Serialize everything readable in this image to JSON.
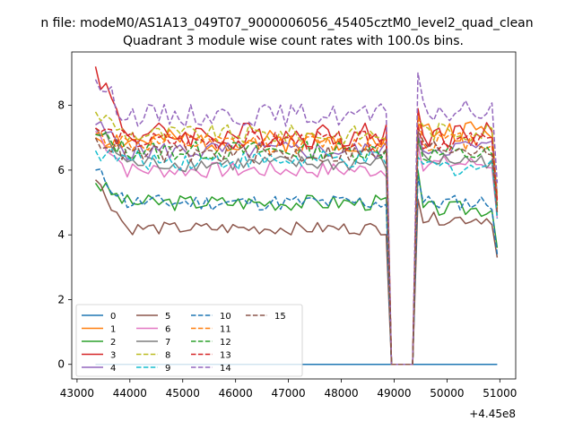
{
  "figure": {
    "suptitle": "n file: modeM0/AS1A13_049T07_9000006056_45405cztM0_level2_quad_clean",
    "title": "Quadrant 3 module wise count rates with 100.0s bins."
  },
  "chart_data": {
    "type": "line",
    "title": "Quadrant 3 module wise count rates with 100.0s bins.",
    "xlabel": "",
    "ylabel": "",
    "x_offset_label": "+4.45e8",
    "xlim": [
      42900,
      51300
    ],
    "ylim": [
      -0.45,
      9.65
    ],
    "xticks": [
      43000,
      44000,
      45000,
      46000,
      47000,
      48000,
      49000,
      50000,
      51000
    ],
    "xtick_labels": [
      "43000",
      "44000",
      "45000",
      "46000",
      "47000",
      "48000",
      "49000",
      "50000",
      "51000"
    ],
    "yticks": [
      0,
      2,
      4,
      6,
      8
    ],
    "ytick_labels": [
      "0",
      "2",
      "4",
      "6",
      "8"
    ],
    "grid": false,
    "legend_position": "lower-left",
    "legend_columns": 4,
    "gap_x_range": [
      48900,
      49400
    ],
    "x_range": [
      43350,
      50950
    ],
    "x_step": 100,
    "series": [
      {
        "name": "0",
        "color": "#1f77b4",
        "style": "solid",
        "base": [
          0,
          0,
          0,
          0,
          0,
          0,
          0,
          0,
          0,
          0,
          0,
          0,
          0,
          0,
          0,
          0,
          0,
          0,
          0,
          0,
          0,
          0,
          0,
          0,
          0,
          0,
          0,
          0,
          0,
          0,
          0,
          0,
          0,
          0,
          0,
          0,
          0,
          0,
          0,
          0,
          0,
          0,
          0,
          0,
          0,
          0,
          0,
          0,
          0,
          0,
          0,
          0,
          0,
          0,
          0,
          0,
          0,
          0,
          0,
          0,
          0,
          0,
          0,
          0,
          0,
          0,
          0,
          0,
          0,
          0,
          0,
          0,
          0,
          0,
          0,
          0
        ],
        "first": 0,
        "last": 0,
        "after_first": 0,
        "seed": 1
      },
      {
        "name": "1",
        "color": "#ff7f0e",
        "style": "solid",
        "base": 6.9,
        "first": 7.0,
        "after_first": 7.4,
        "after_level": 7.2,
        "last": 4.8,
        "amp": 0.35,
        "seed": 2
      },
      {
        "name": "2",
        "color": "#2ca02c",
        "style": "solid",
        "base": 5.0,
        "first": 5.6,
        "after_first": 6.0,
        "after_level": 4.8,
        "last": 3.6,
        "amp": 0.25,
        "seed": 3
      },
      {
        "name": "3",
        "color": "#d62728",
        "style": "solid",
        "base": 7.1,
        "first": 9.2,
        "after_first": 7.9,
        "after_level": 7.1,
        "last": 5.1,
        "amp": 0.4,
        "seed": 4
      },
      {
        "name": "4",
        "color": "#9467bd",
        "style": "solid",
        "base": 6.6,
        "first": 7.4,
        "after_first": 7.1,
        "after_level": 6.7,
        "last": 5.3,
        "amp": 0.3,
        "seed": 5
      },
      {
        "name": "5",
        "color": "#8c564b",
        "style": "solid",
        "base": 4.2,
        "first": 5.7,
        "after_first": 5.1,
        "after_level": 4.5,
        "last": 3.3,
        "amp": 0.2,
        "seed": 6
      },
      {
        "name": "6",
        "color": "#e377c2",
        "style": "solid",
        "base": 6.0,
        "first": 7.2,
        "after_first": 6.8,
        "after_level": 6.2,
        "last": 4.5,
        "amp": 0.25,
        "seed": 7
      },
      {
        "name": "7",
        "color": "#7f7f7f",
        "style": "solid",
        "base": 6.2,
        "first": 7.3,
        "after_first": 6.9,
        "after_level": 6.3,
        "last": 4.6,
        "amp": 0.25,
        "seed": 8
      },
      {
        "name": "8",
        "color": "#bcbd22",
        "style": "dashed",
        "base": 7.1,
        "first": 7.8,
        "after_first": 7.6,
        "after_level": 7.2,
        "last": 5.2,
        "amp": 0.3,
        "seed": 9
      },
      {
        "name": "9",
        "color": "#17becf",
        "style": "dashed",
        "base": 6.3,
        "first": 6.6,
        "after_first": 6.4,
        "after_level": 6.1,
        "last": 4.5,
        "amp": 0.3,
        "seed": 10
      },
      {
        "name": "10",
        "color": "#1f77b4",
        "style": "dashed",
        "base": 5.0,
        "first": 6.0,
        "after_first": 5.8,
        "after_level": 5.0,
        "last": 3.4,
        "amp": 0.25,
        "seed": 11
      },
      {
        "name": "11",
        "color": "#ff7f0e",
        "style": "dashed",
        "base": 6.8,
        "first": 7.1,
        "after_first": 7.7,
        "after_level": 6.9,
        "last": 5.0,
        "amp": 0.3,
        "seed": 12
      },
      {
        "name": "12",
        "color": "#2ca02c",
        "style": "dashed",
        "base": 6.6,
        "first": 7.1,
        "after_first": 7.0,
        "after_level": 6.5,
        "last": 4.9,
        "amp": 0.3,
        "seed": 13
      },
      {
        "name": "13",
        "color": "#d62728",
        "style": "dashed",
        "base": 6.9,
        "first": 7.3,
        "after_first": 7.4,
        "after_level": 6.9,
        "last": 5.0,
        "amp": 0.3,
        "seed": 14
      },
      {
        "name": "14",
        "color": "#9467bd",
        "style": "dashed",
        "base": 7.7,
        "first": 8.8,
        "after_first": 9.0,
        "after_level": 7.8,
        "last": 5.6,
        "amp": 0.35,
        "seed": 15
      },
      {
        "name": "15",
        "color": "#8c564b",
        "style": "dashed",
        "base": 6.5,
        "first": 7.0,
        "after_first": 7.2,
        "after_level": 6.7,
        "last": 4.7,
        "amp": 0.3,
        "seed": 16
      }
    ]
  }
}
